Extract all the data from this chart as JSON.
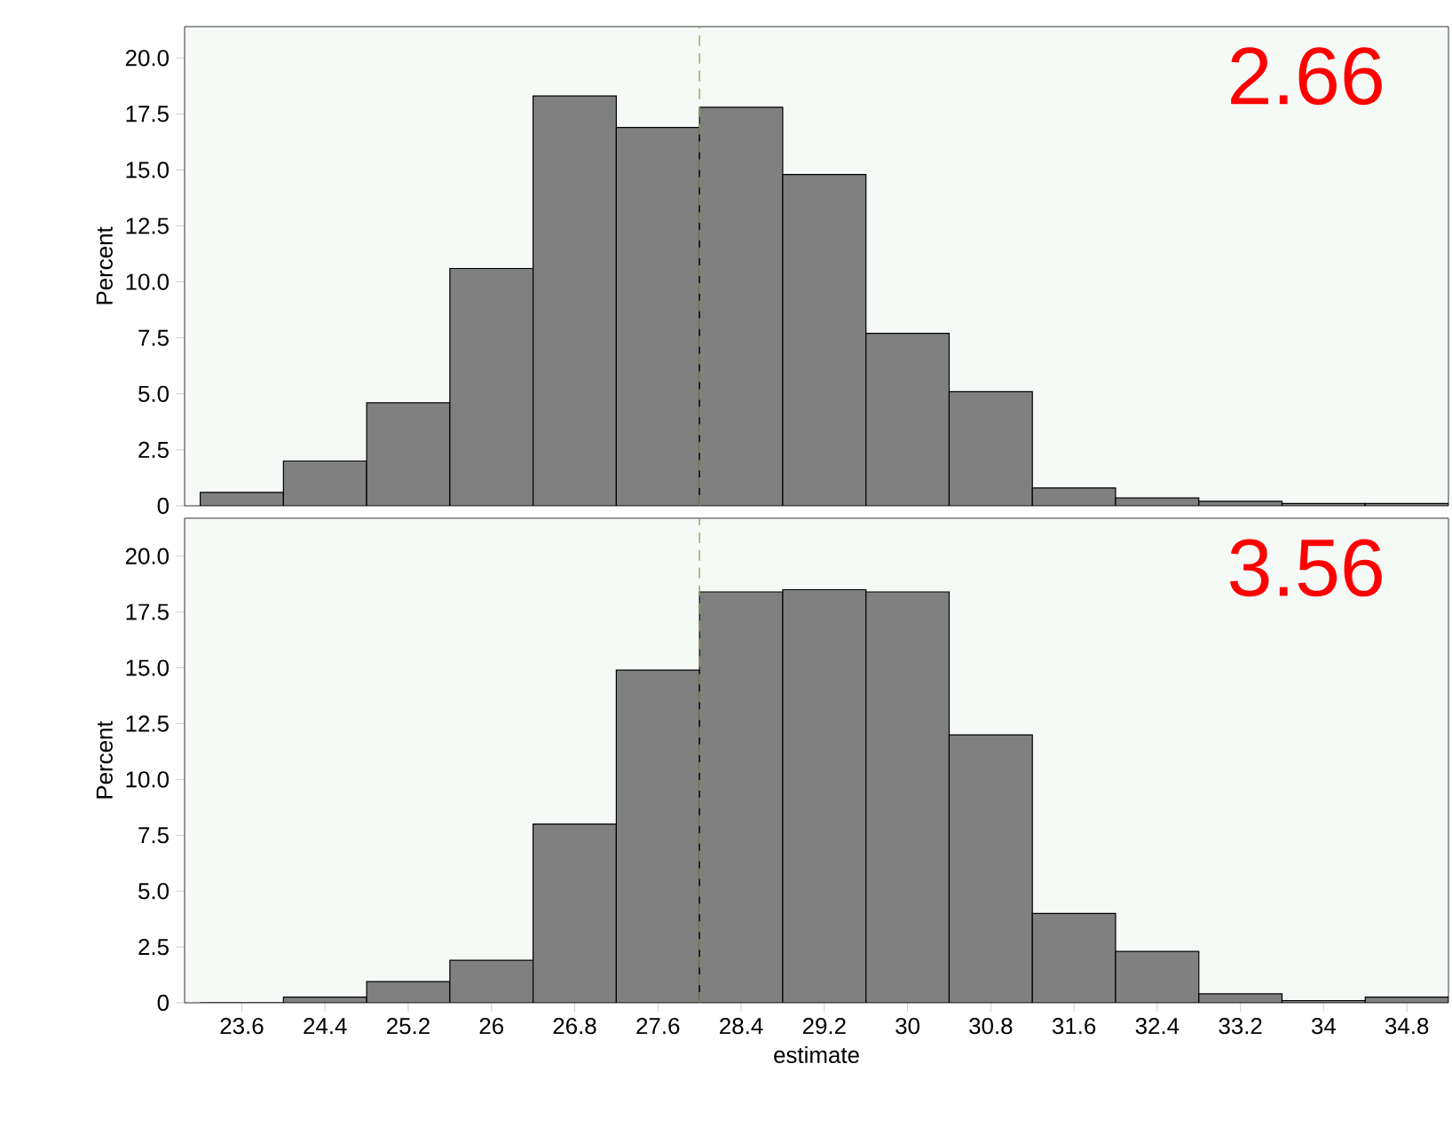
{
  "chart_data": [
    {
      "type": "histogram",
      "ylabel": "Percent",
      "bins": [
        23.2,
        24.0,
        24.8,
        25.6,
        26.4,
        27.2,
        28.0,
        28.8,
        29.6,
        30.4,
        31.2,
        32.0,
        32.8,
        33.6,
        34.4,
        35.2
      ],
      "values": [
        0.6,
        2.0,
        4.6,
        10.6,
        18.3,
        16.9,
        17.8,
        14.8,
        7.7,
        5.1,
        0.8,
        0.35,
        0.2,
        0.1,
        0.1
      ],
      "color": "#808080",
      "xlim": [
        23.05,
        35.2
      ],
      "ylim": [
        0,
        21.4
      ],
      "xticks": [
        23.6,
        24.4,
        25.2,
        26,
        26.8,
        27.6,
        28.4,
        29.2,
        30,
        30.8,
        31.6,
        32.4,
        33.2,
        34,
        34.8
      ],
      "yticks": [
        0,
        2.5,
        {
          "value": 5,
          "label": "5.0"
        },
        7.5,
        {
          "value": 10,
          "label": "10.0"
        },
        12.5,
        {
          "value": 15,
          "label": "15.0"
        },
        17.5,
        {
          "value": 20,
          "label": "20.0"
        }
      ],
      "tick_labels": "y",
      "grid": false,
      "ref_lines": [
        {
          "axis": "x",
          "value": 28,
          "color": "#a0a050",
          "line_style": "dashed"
        }
      ],
      "annotations": [
        "2.66"
      ]
    },
    {
      "type": "histogram",
      "xlabel": "estimate",
      "ylabel": "Percent",
      "bins": [
        23.2,
        24.0,
        24.8,
        25.6,
        26.4,
        27.2,
        28.0,
        28.8,
        29.6,
        30.4,
        31.2,
        32.0,
        32.8,
        33.6,
        34.4,
        35.2
      ],
      "values": [
        0.0,
        0.25,
        0.95,
        1.9,
        8.0,
        14.9,
        18.4,
        18.5,
        18.4,
        12.0,
        4.0,
        2.3,
        0.4,
        0.1,
        0.25
      ],
      "color": "#808080",
      "xlim": [
        23.05,
        35.2
      ],
      "ylim": [
        0,
        21.7
      ],
      "xticks": [
        23.6,
        24.4,
        25.2,
        26,
        26.8,
        27.6,
        28.4,
        29.2,
        30,
        30.8,
        31.6,
        32.4,
        33.2,
        34,
        34.8
      ],
      "yticks": [
        0,
        2.5,
        {
          "value": 5,
          "label": "5.0"
        },
        7.5,
        {
          "value": 10,
          "label": "10.0"
        },
        12.5,
        {
          "value": 15,
          "label": "15.0"
        },
        17.5,
        {
          "value": 20,
          "label": "20.0"
        }
      ],
      "grid": false,
      "ref_lines": [
        {
          "axis": "x",
          "value": 28,
          "color": "#a0a050",
          "line_style": "dashed"
        }
      ],
      "annotations": [
        "3.56"
      ]
    }
  ]
}
